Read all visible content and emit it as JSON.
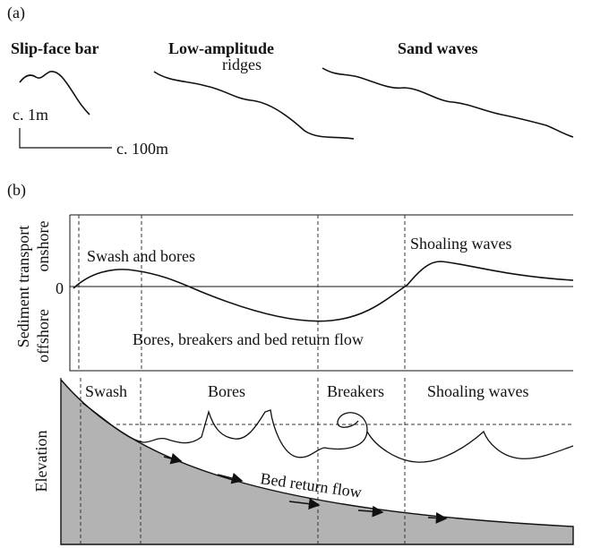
{
  "panel_a": {
    "label": "(a)",
    "bedforms": [
      {
        "name": [
          "Slip-face bar"
        ]
      },
      {
        "name": [
          "Low-amplitude",
          "ridges"
        ]
      },
      {
        "name": [
          "Sand waves"
        ]
      }
    ],
    "scale": {
      "vertical": "c. 1m",
      "horizontal": "c. 100m"
    }
  },
  "panel_b": {
    "label": "(b)",
    "transport_plot": {
      "axis_label": "Sediment transport",
      "onshore": "onshore",
      "offshore": "offshore",
      "zero": "0",
      "annotations": [
        "Swash and bores",
        "Shoaling waves",
        "Bores, breakers and bed return flow"
      ]
    },
    "profile_plot": {
      "axis_label": "Elevation",
      "zones": [
        "Swash",
        "Bores",
        "Breakers",
        "Shoaling waves"
      ],
      "flow_label": "Bed return flow"
    }
  }
}
